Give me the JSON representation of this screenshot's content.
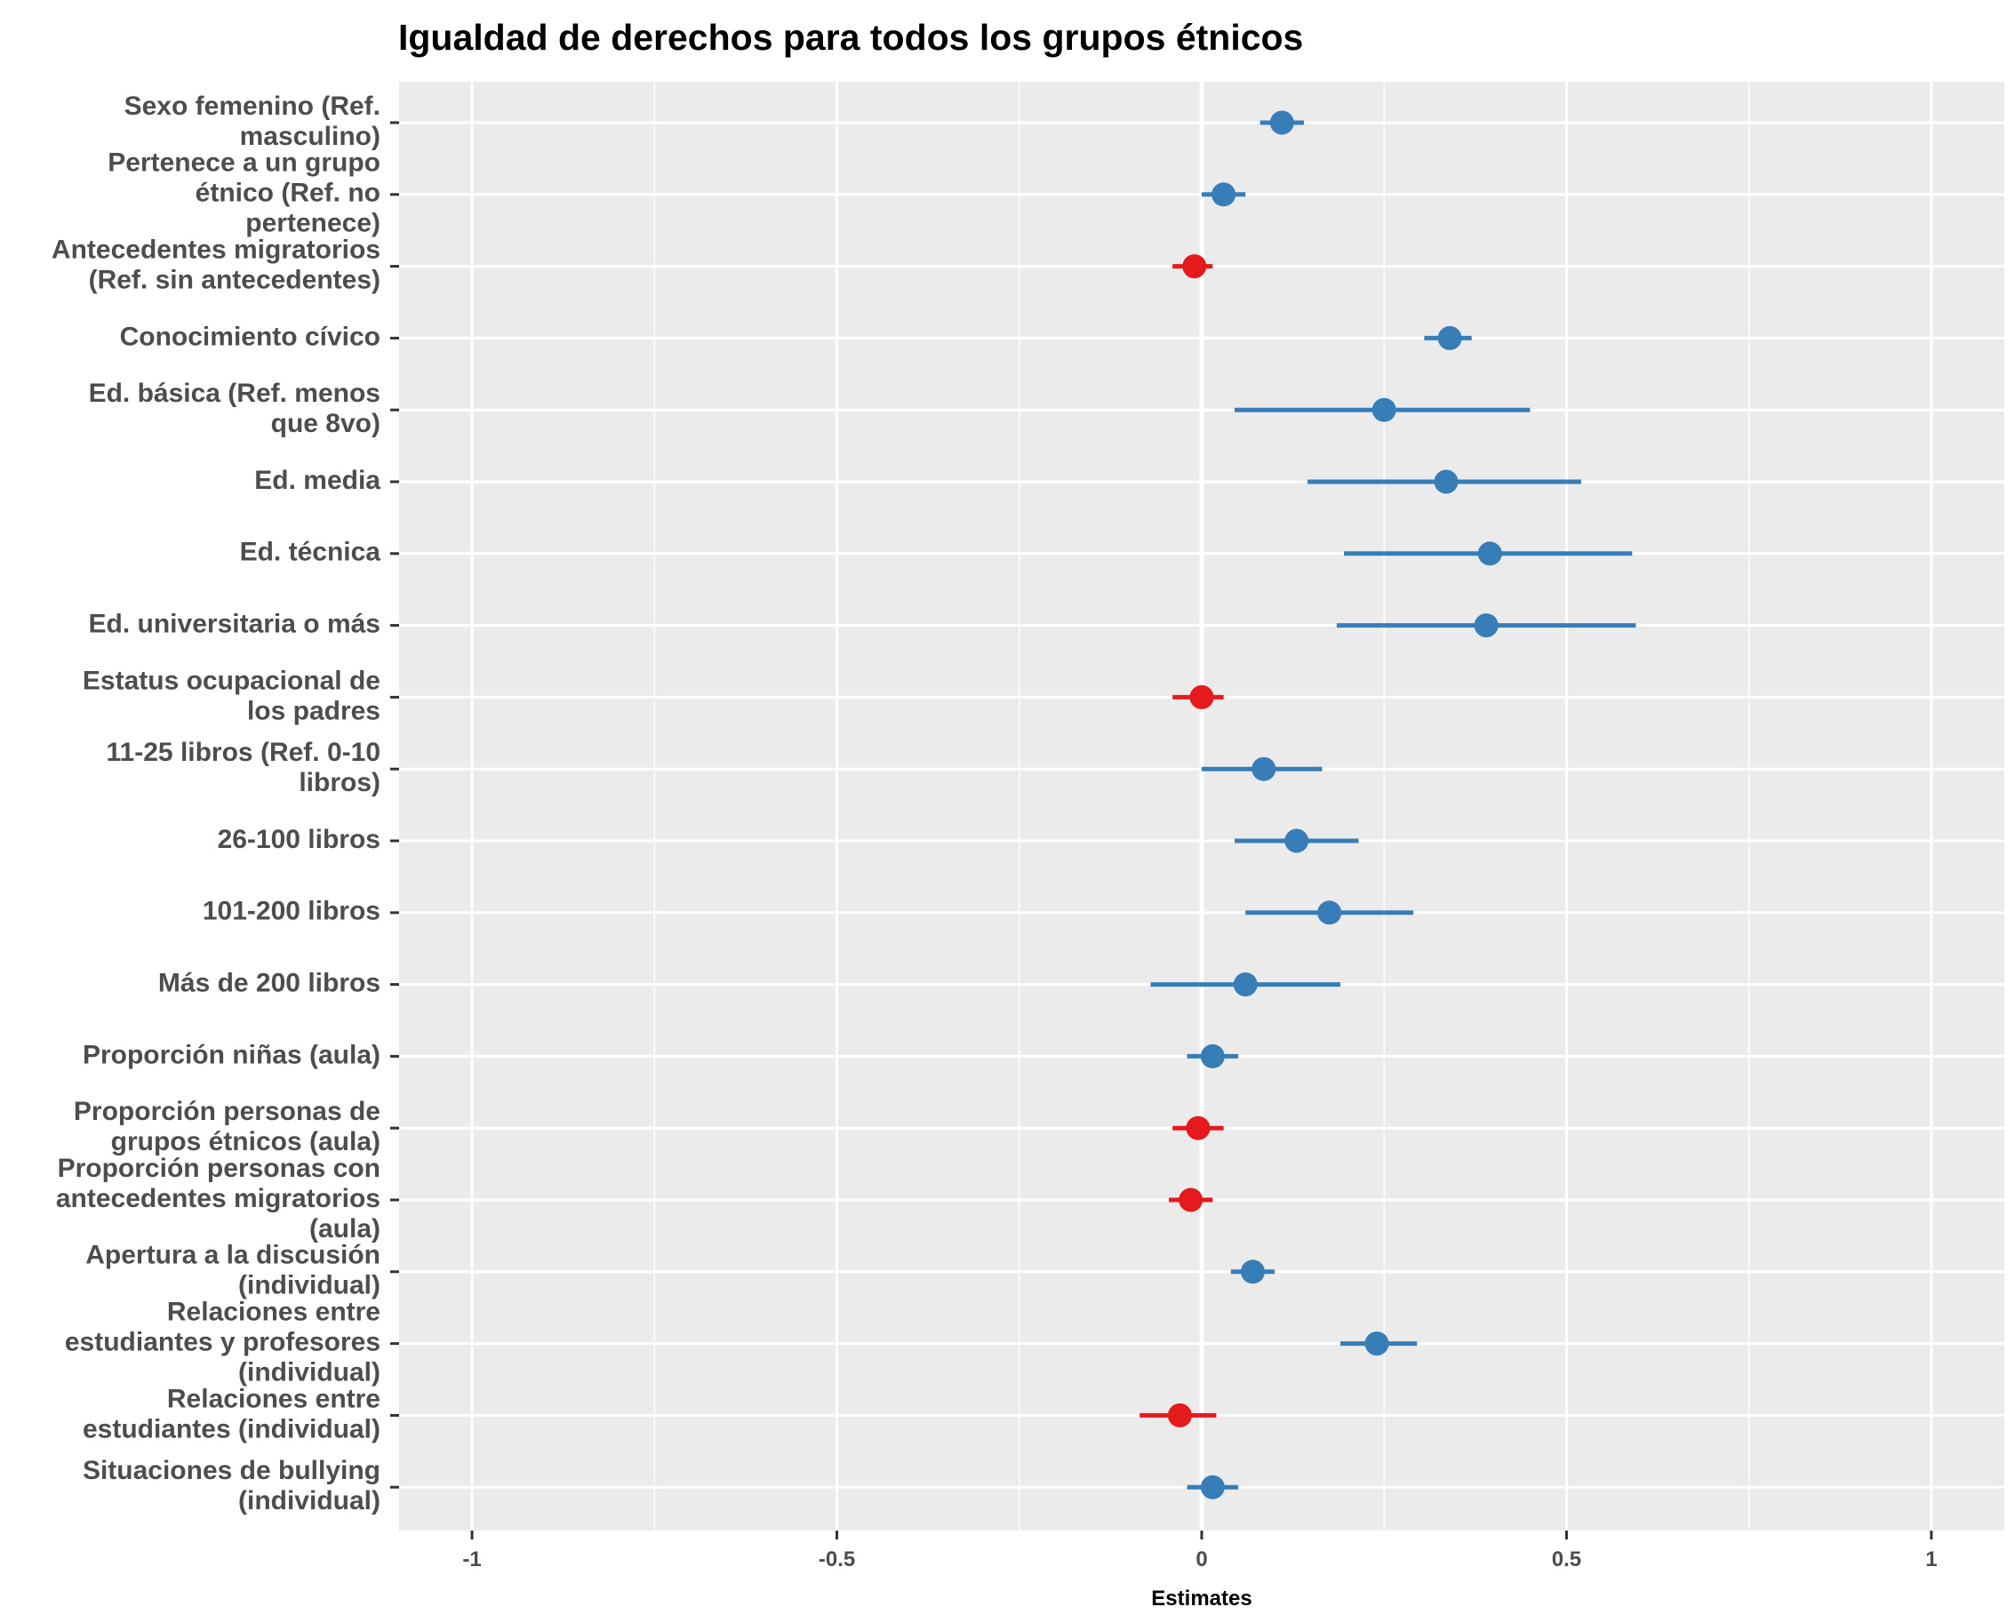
{
  "chart_data": {
    "type": "forest",
    "title": "Igualdad de derechos para todos los grupos étnicos",
    "xlabel": "Estimates",
    "xlim": [
      -1.1,
      1.1
    ],
    "xticks": [
      -1,
      -0.5,
      0,
      0.5,
      1
    ],
    "xtick_labels": [
      "-1",
      "-0.5",
      "0",
      "0.5",
      "1"
    ],
    "grid": true,
    "colors": {
      "positive": "#377eb8",
      "negative": "#e41a1c",
      "panel": "#ebebeb",
      "grid": "#ffffff"
    },
    "terms": [
      {
        "label": [
          "Sexo femenino (Ref.",
          "masculino)"
        ],
        "estimate": 0.11,
        "low": 0.08,
        "high": 0.14,
        "sign": "positive"
      },
      {
        "label": [
          "Pertenece a un grupo",
          "étnico (Ref. no",
          "pertenece)"
        ],
        "estimate": 0.03,
        "low": 0.0,
        "high": 0.06,
        "sign": "positive"
      },
      {
        "label": [
          "Antecedentes migratorios",
          "(Ref. sin antecedentes)"
        ],
        "estimate": -0.01,
        "low": -0.04,
        "high": 0.015,
        "sign": "negative"
      },
      {
        "label": [
          "Conocimiento cívico"
        ],
        "estimate": 0.34,
        "low": 0.305,
        "high": 0.37,
        "sign": "positive"
      },
      {
        "label": [
          "Ed. básica (Ref. menos",
          "que 8vo)"
        ],
        "estimate": 0.25,
        "low": 0.045,
        "high": 0.45,
        "sign": "positive"
      },
      {
        "label": [
          "Ed. media"
        ],
        "estimate": 0.335,
        "low": 0.145,
        "high": 0.52,
        "sign": "positive"
      },
      {
        "label": [
          "Ed. técnica"
        ],
        "estimate": 0.395,
        "low": 0.195,
        "high": 0.59,
        "sign": "positive"
      },
      {
        "label": [
          "Ed. universitaria o más"
        ],
        "estimate": 0.39,
        "low": 0.185,
        "high": 0.595,
        "sign": "positive"
      },
      {
        "label": [
          "Estatus ocupacional de",
          "los padres"
        ],
        "estimate": 0.0,
        "low": -0.04,
        "high": 0.03,
        "sign": "negative"
      },
      {
        "label": [
          "11-25 libros (Ref. 0-10",
          "libros)"
        ],
        "estimate": 0.085,
        "low": 0.0,
        "high": 0.165,
        "sign": "positive"
      },
      {
        "label": [
          "26-100 libros"
        ],
        "estimate": 0.13,
        "low": 0.045,
        "high": 0.215,
        "sign": "positive"
      },
      {
        "label": [
          "101-200 libros"
        ],
        "estimate": 0.175,
        "low": 0.06,
        "high": 0.29,
        "sign": "positive"
      },
      {
        "label": [
          "Más de 200 libros"
        ],
        "estimate": 0.06,
        "low": -0.07,
        "high": 0.19,
        "sign": "positive"
      },
      {
        "label": [
          "Proporción niñas (aula)"
        ],
        "estimate": 0.015,
        "low": -0.02,
        "high": 0.05,
        "sign": "positive"
      },
      {
        "label": [
          "Proporción personas de",
          "grupos étnicos (aula)"
        ],
        "estimate": -0.005,
        "low": -0.04,
        "high": 0.03,
        "sign": "negative"
      },
      {
        "label": [
          "Proporción personas con",
          "antecedentes migratorios",
          "(aula)"
        ],
        "estimate": -0.015,
        "low": -0.045,
        "high": 0.015,
        "sign": "negative"
      },
      {
        "label": [
          "Apertura a la discusión",
          "(individual)"
        ],
        "estimate": 0.07,
        "low": 0.04,
        "high": 0.1,
        "sign": "positive"
      },
      {
        "label": [
          "Relaciones entre",
          "estudiantes y profesores",
          "(individual)"
        ],
        "estimate": 0.24,
        "low": 0.19,
        "high": 0.295,
        "sign": "positive"
      },
      {
        "label": [
          "Relaciones entre",
          "estudiantes (individual)"
        ],
        "estimate": -0.03,
        "low": -0.085,
        "high": 0.02,
        "sign": "negative"
      },
      {
        "label": [
          "Situaciones de bullying",
          "(individual)"
        ],
        "estimate": 0.015,
        "low": -0.02,
        "high": 0.05,
        "sign": "positive"
      }
    ]
  }
}
